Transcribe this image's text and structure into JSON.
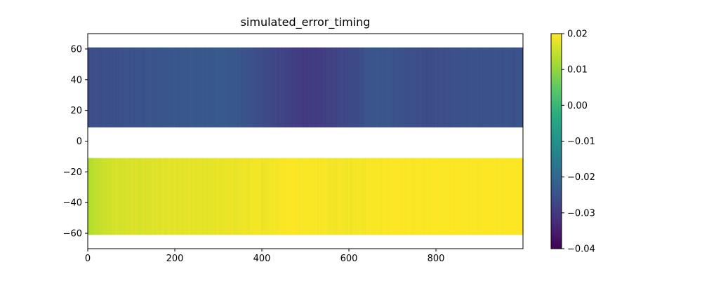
{
  "chart_data": {
    "type": "heatmap",
    "title": "simulated_error_timing",
    "xlabel": "",
    "ylabel": "",
    "xlim": [
      0,
      1000
    ],
    "ylim": [
      -70,
      70
    ],
    "x_ticks": [
      0,
      200,
      400,
      600,
      800
    ],
    "x_tick_labels": [
      "0",
      "200",
      "400",
      "600",
      "800"
    ],
    "y_ticks": [
      60,
      40,
      20,
      0,
      -20,
      -40,
      -60
    ],
    "y_tick_labels": [
      "60",
      "40",
      "20",
      "0",
      "−20",
      "−40",
      "−60"
    ],
    "colormap": "viridis",
    "color_range": [
      -0.04,
      0.02
    ],
    "colorbar_ticks": [
      0.02,
      0.01,
      0.0,
      -0.01,
      -0.02,
      -0.03,
      -0.04
    ],
    "colorbar_tick_labels": [
      "0.02",
      "0.01",
      "0.00",
      "−0.01",
      "−0.02",
      "−0.03",
      "−0.04"
    ],
    "grid": false,
    "bands": [
      {
        "y_range": [
          9,
          61
        ],
        "x_range": [
          0,
          1000
        ],
        "value_profile": [
          {
            "x": 0,
            "value": -0.026
          },
          {
            "x": 100,
            "value": -0.025
          },
          {
            "x": 200,
            "value": -0.024
          },
          {
            "x": 320,
            "value": -0.023
          },
          {
            "x": 420,
            "value": -0.027
          },
          {
            "x": 500,
            "value": -0.03
          },
          {
            "x": 600,
            "value": -0.027
          },
          {
            "x": 660,
            "value": -0.024
          },
          {
            "x": 780,
            "value": -0.026
          },
          {
            "x": 900,
            "value": -0.025
          },
          {
            "x": 1000,
            "value": -0.025
          }
        ]
      },
      {
        "y_range": [
          -61,
          -11
        ],
        "x_range": [
          0,
          1000
        ],
        "value_profile": [
          {
            "x": 0,
            "value": 0.013
          },
          {
            "x": 50,
            "value": 0.016
          },
          {
            "x": 150,
            "value": 0.017
          },
          {
            "x": 300,
            "value": 0.018
          },
          {
            "x": 420,
            "value": 0.019
          },
          {
            "x": 460,
            "value": 0.02
          },
          {
            "x": 600,
            "value": 0.019
          },
          {
            "x": 700,
            "value": 0.02
          },
          {
            "x": 1000,
            "value": 0.02
          }
        ]
      }
    ]
  }
}
